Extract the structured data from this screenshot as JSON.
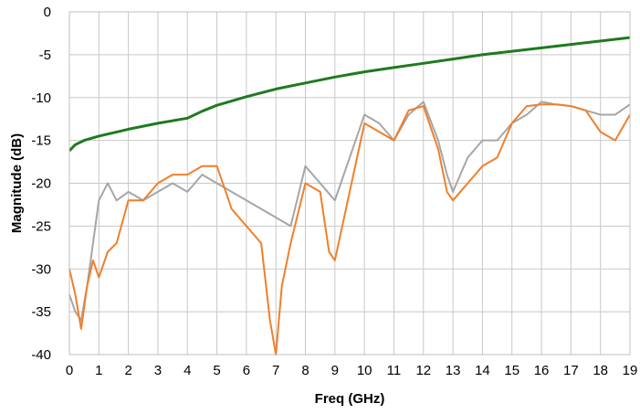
{
  "chart_data": {
    "type": "line",
    "title": "",
    "xlabel": "Freq (GHz)",
    "ylabel": "Magnitude (dB)",
    "xlim": [
      0,
      19
    ],
    "ylim": [
      -40,
      0
    ],
    "xticks": [
      0,
      1,
      2,
      3,
      4,
      5,
      6,
      7,
      8,
      9,
      10,
      11,
      12,
      13,
      14,
      15,
      16,
      17,
      18,
      19
    ],
    "yticks": [
      0,
      -5,
      -10,
      -15,
      -20,
      -25,
      -30,
      -35,
      -40
    ],
    "grid": true,
    "legend": "none",
    "series": [
      {
        "color": "#1f7a1f",
        "x": [
          0,
          0.2,
          0.5,
          1,
          1.5,
          2,
          3,
          4,
          4.5,
          5,
          6,
          7,
          8,
          9,
          10,
          11,
          12,
          13,
          14,
          15,
          16,
          17,
          18,
          19
        ],
        "y": [
          -16.2,
          -15.5,
          -15.0,
          -14.5,
          -14.1,
          -13.7,
          -13.0,
          -12.4,
          -11.6,
          -10.9,
          -9.9,
          -9.0,
          -8.3,
          -7.6,
          -7.0,
          -6.5,
          -6.0,
          -5.5,
          -5.0,
          -4.6,
          -4.2,
          -3.8,
          -3.4,
          -3.0
        ]
      },
      {
        "color": "#a6a6a6",
        "x": [
          0,
          0.2,
          0.4,
          0.6,
          0.8,
          1,
          1.3,
          1.6,
          2,
          2.5,
          3,
          3.5,
          4,
          4.5,
          5,
          5.5,
          6,
          6.5,
          7,
          7.5,
          8,
          8.5,
          9,
          9.5,
          10,
          10.5,
          11,
          11.5,
          12,
          12.5,
          12.8,
          13,
          13.5,
          14,
          14.5,
          15,
          15.5,
          16,
          16.5,
          17,
          17.5,
          18,
          18.5,
          19
        ],
        "y": [
          -33,
          -35,
          -36,
          -32,
          -27,
          -22,
          -20,
          -22,
          -21,
          -22,
          -21,
          -20,
          -21,
          -19,
          -20,
          -21,
          -22,
          -23,
          -24,
          -25,
          -18,
          -20,
          -22,
          -17,
          -12,
          -13,
          -15,
          -12,
          -10.5,
          -15,
          -19,
          -21,
          -17,
          -15,
          -15,
          -13,
          -12,
          -10.5,
          -10.8,
          -11,
          -11.5,
          -12,
          -12,
          -10.8
        ]
      },
      {
        "color": "#f07f2a",
        "x": [
          0,
          0.2,
          0.4,
          0.6,
          0.8,
          1,
          1.3,
          1.6,
          2,
          2.5,
          3,
          3.5,
          4,
          4.5,
          5,
          5.5,
          6,
          6.5,
          6.8,
          7,
          7.2,
          7.5,
          8,
          8.5,
          8.8,
          9,
          9.5,
          10,
          10.5,
          11,
          11.5,
          12,
          12.5,
          12.8,
          13,
          13.5,
          14,
          14.5,
          15,
          15.5,
          16,
          16.5,
          17,
          17.5,
          18,
          18.5,
          19
        ],
        "y": [
          -30,
          -33,
          -37,
          -32,
          -29,
          -31,
          -28,
          -27,
          -22,
          -22,
          -20,
          -19,
          -19,
          -18,
          -18,
          -23,
          -25,
          -27,
          -36,
          -40,
          -32,
          -27,
          -20,
          -21,
          -28,
          -29,
          -21,
          -13,
          -14,
          -15,
          -11.5,
          -11,
          -16,
          -21,
          -22,
          -20,
          -18,
          -17,
          -13,
          -11,
          -10.8,
          -10.8,
          -11,
          -11.5,
          -14,
          -15,
          -12
        ]
      }
    ]
  }
}
